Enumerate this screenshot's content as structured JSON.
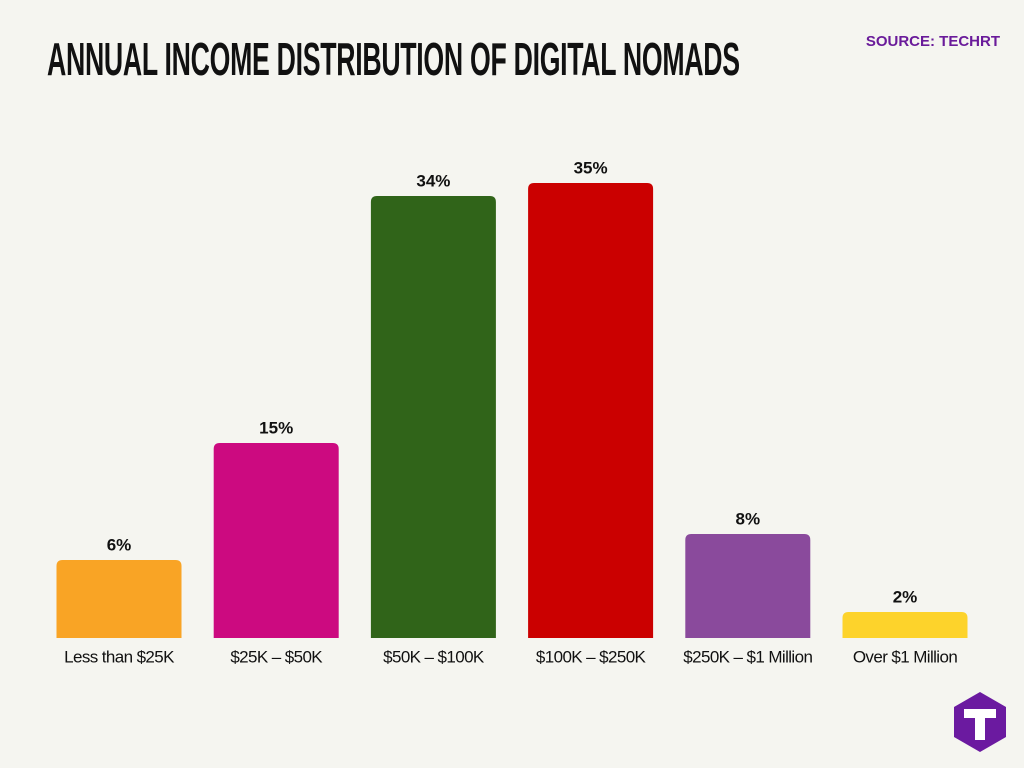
{
  "chart_data": {
    "type": "bar",
    "title": "ANNUAL INCOME DISTRIBUTION OF DIGITAL NOMADS",
    "source": "SOURCE: TECHRT",
    "categories": [
      "Less than $25K",
      "$25K – $50K",
      "$50K – $100K",
      "$100K – $250K",
      "$250K – $1 Million",
      "Over $1 Million"
    ],
    "values": [
      6,
      15,
      34,
      35,
      8,
      2
    ],
    "value_labels": [
      "6%",
      "15%",
      "34%",
      "35%",
      "8%",
      "2%"
    ],
    "colors": [
      "#f9a425",
      "#cc0a80",
      "#306419",
      "#cb0000",
      "#8a4a9c",
      "#fdd32b"
    ]
  }
}
